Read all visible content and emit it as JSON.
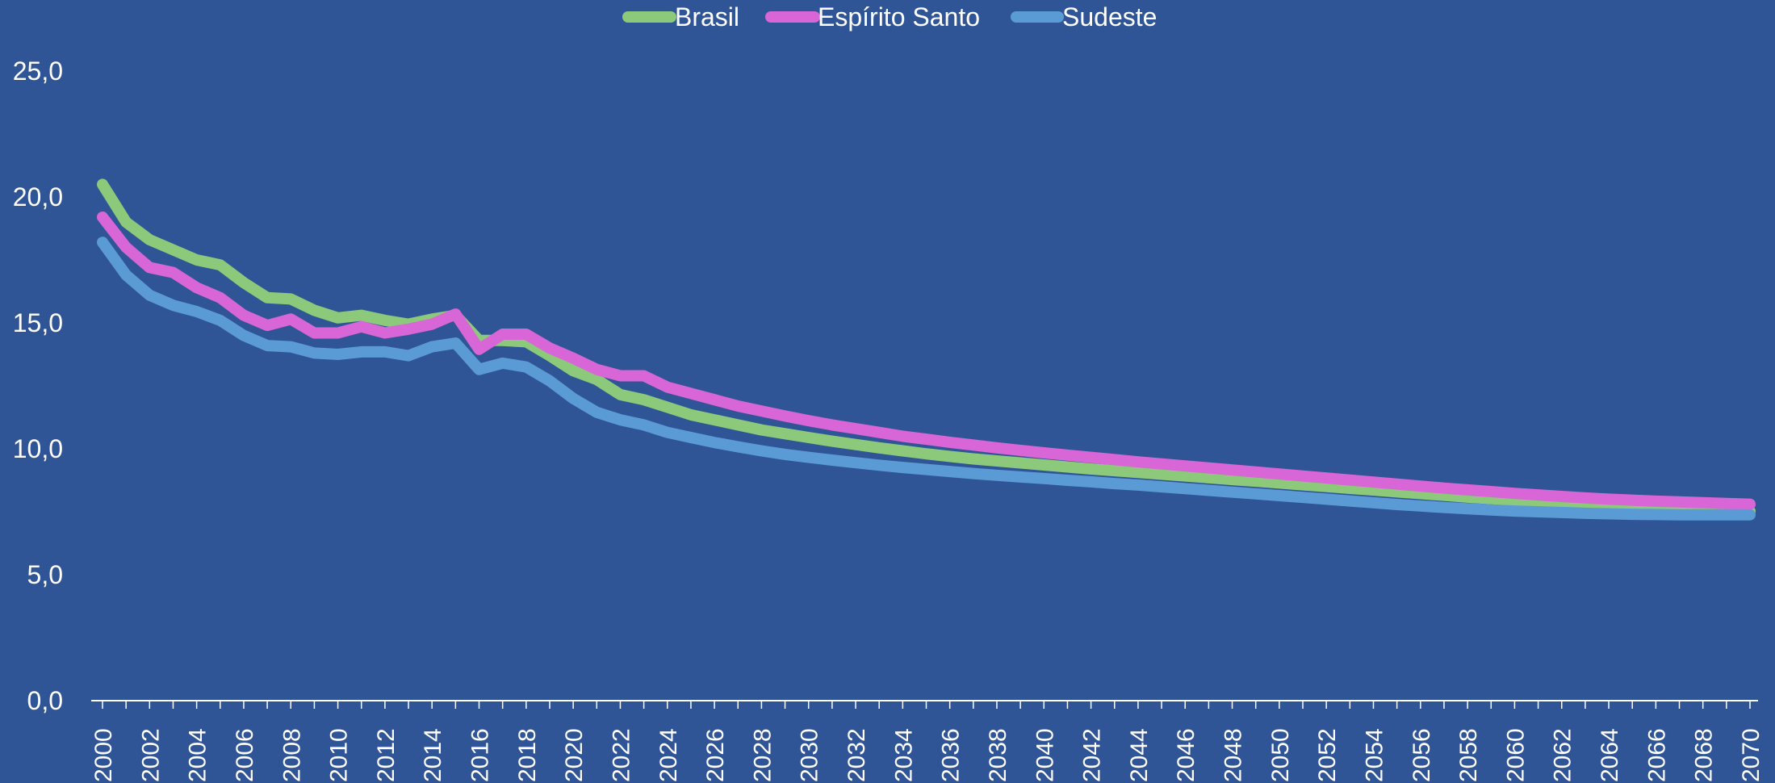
{
  "chart_data": {
    "type": "line",
    "title": "",
    "xlabel": "",
    "ylabel": "",
    "ylim": [
      0,
      25
    ],
    "y_ticks": [
      "0,0",
      "5,0",
      "10,0",
      "15,0",
      "20,0",
      "25,0"
    ],
    "x_start": 2000,
    "x_end": 2070,
    "x_tick_labels": [
      "2000",
      "2002",
      "2004",
      "2006",
      "2008",
      "2010",
      "2012",
      "2014",
      "2016",
      "2018",
      "2020",
      "2022",
      "2024",
      "2026",
      "2028",
      "2030",
      "2032",
      "2034",
      "2036",
      "2038",
      "2040",
      "2042",
      "2044",
      "2046",
      "2048",
      "2050",
      "2052",
      "2054",
      "2056",
      "2058",
      "2060",
      "2062",
      "2064",
      "2066",
      "2068",
      "2070"
    ],
    "grid": false,
    "legend_position": "top-center",
    "background_color": "#2F5597",
    "series": [
      {
        "name": "Brasil",
        "color": "#8CC97A",
        "values": [
          20.5,
          19.0,
          18.3,
          17.9,
          17.5,
          17.3,
          16.6,
          16.0,
          15.95,
          15.5,
          15.2,
          15.3,
          15.1,
          14.95,
          15.15,
          15.3,
          14.3,
          14.3,
          14.25,
          13.7,
          13.1,
          12.75,
          12.15,
          11.95,
          11.65,
          11.35,
          11.15,
          10.95,
          10.75,
          10.6,
          10.45,
          10.3,
          10.17,
          10.04,
          9.92,
          9.8,
          9.7,
          9.6,
          9.52,
          9.44,
          9.36,
          9.28,
          9.2,
          9.13,
          9.06,
          8.99,
          8.92,
          8.85,
          8.78,
          8.71,
          8.64,
          8.57,
          8.5,
          8.43,
          8.36,
          8.29,
          8.22,
          8.15,
          8.08,
          8.02,
          7.96,
          7.9,
          7.85,
          7.8,
          7.75,
          7.7,
          7.66,
          7.62,
          7.59,
          7.56,
          7.52
        ]
      },
      {
        "name": "Espírito Santo",
        "color": "#D966D6",
        "values": [
          19.2,
          18.0,
          17.2,
          17.0,
          16.4,
          16.0,
          15.3,
          14.9,
          15.15,
          14.6,
          14.6,
          14.85,
          14.6,
          14.75,
          14.95,
          15.35,
          13.95,
          14.55,
          14.55,
          14.0,
          13.6,
          13.15,
          12.9,
          12.9,
          12.45,
          12.2,
          11.95,
          11.7,
          11.5,
          11.3,
          11.12,
          10.95,
          10.8,
          10.65,
          10.5,
          10.38,
          10.26,
          10.15,
          10.04,
          9.94,
          9.84,
          9.75,
          9.66,
          9.57,
          9.48,
          9.4,
          9.32,
          9.24,
          9.16,
          9.08,
          9.0,
          8.92,
          8.84,
          8.76,
          8.68,
          8.6,
          8.52,
          8.44,
          8.37,
          8.3,
          8.23,
          8.17,
          8.11,
          8.05,
          8.0,
          7.96,
          7.92,
          7.89,
          7.86,
          7.83,
          7.8
        ]
      },
      {
        "name": "Sudeste",
        "color": "#5B9BD5",
        "values": [
          18.2,
          16.9,
          16.1,
          15.7,
          15.45,
          15.1,
          14.5,
          14.1,
          14.05,
          13.8,
          13.75,
          13.85,
          13.85,
          13.7,
          14.05,
          14.2,
          13.15,
          13.4,
          13.25,
          12.7,
          12.0,
          11.45,
          11.15,
          10.95,
          10.65,
          10.45,
          10.25,
          10.08,
          9.92,
          9.78,
          9.66,
          9.55,
          9.45,
          9.35,
          9.26,
          9.18,
          9.1,
          9.02,
          8.95,
          8.88,
          8.82,
          8.75,
          8.69,
          8.62,
          8.56,
          8.49,
          8.42,
          8.35,
          8.28,
          8.21,
          8.14,
          8.07,
          8.0,
          7.93,
          7.86,
          7.79,
          7.73,
          7.67,
          7.62,
          7.57,
          7.53,
          7.5,
          7.47,
          7.44,
          7.42,
          7.4,
          7.39,
          7.38,
          7.38,
          7.38,
          7.38
        ]
      }
    ]
  }
}
